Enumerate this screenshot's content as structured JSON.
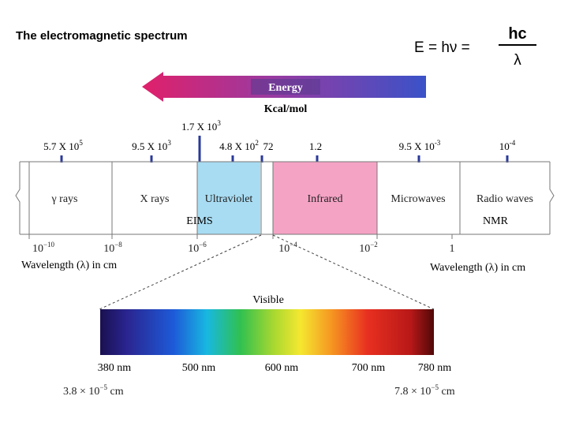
{
  "title": "The electromagnetic spectrum",
  "equation": {
    "lhs": "E = hν =",
    "numerator": "hc",
    "denominator": "λ"
  },
  "energy_arrow": {
    "label": "Energy",
    "units": "Kcal/mol"
  },
  "energy_values": [
    {
      "base": "5.7 X 10",
      "exp": "5"
    },
    {
      "base": "9.5 X 10",
      "exp": "3"
    },
    {
      "base": "1.7 X 10",
      "exp": "3"
    },
    {
      "base": "4.8 X 10",
      "exp": "2"
    },
    {
      "base": "72"
    },
    {
      "base": "1.2"
    },
    {
      "base": "9.5 X 10",
      "exp": "-3"
    },
    {
      "base": "10",
      "exp": "-4"
    }
  ],
  "regions": [
    "γ rays",
    "X rays",
    "Ultraviolet",
    "Infrared",
    "Microwaves",
    "Radio waves"
  ],
  "techniques": [
    "EIMS",
    "NMR"
  ],
  "wavelength_ticks": [
    {
      "base": "10",
      "exp": "−10"
    },
    {
      "base": "10",
      "exp": "−8"
    },
    {
      "base": "10",
      "exp": "−6"
    },
    {
      "base": "10",
      "exp": "−4"
    },
    {
      "base": "10",
      "exp": "−2"
    },
    {
      "base": "1"
    }
  ],
  "axis_labels": [
    "Wavelength (λ) in cm",
    "Wavelength (λ) in cm"
  ],
  "visible": {
    "label": "Visible",
    "nm_labels": [
      "380 nm",
      "500 nm",
      "600 nm",
      "700 nm",
      "780 nm"
    ],
    "cm_labels": [
      {
        "base": "3.8 × 10",
        "exp": "−5",
        "unit": " cm"
      },
      {
        "base": "7.8 × 10",
        "exp": "−5",
        "unit": " cm"
      }
    ]
  }
}
